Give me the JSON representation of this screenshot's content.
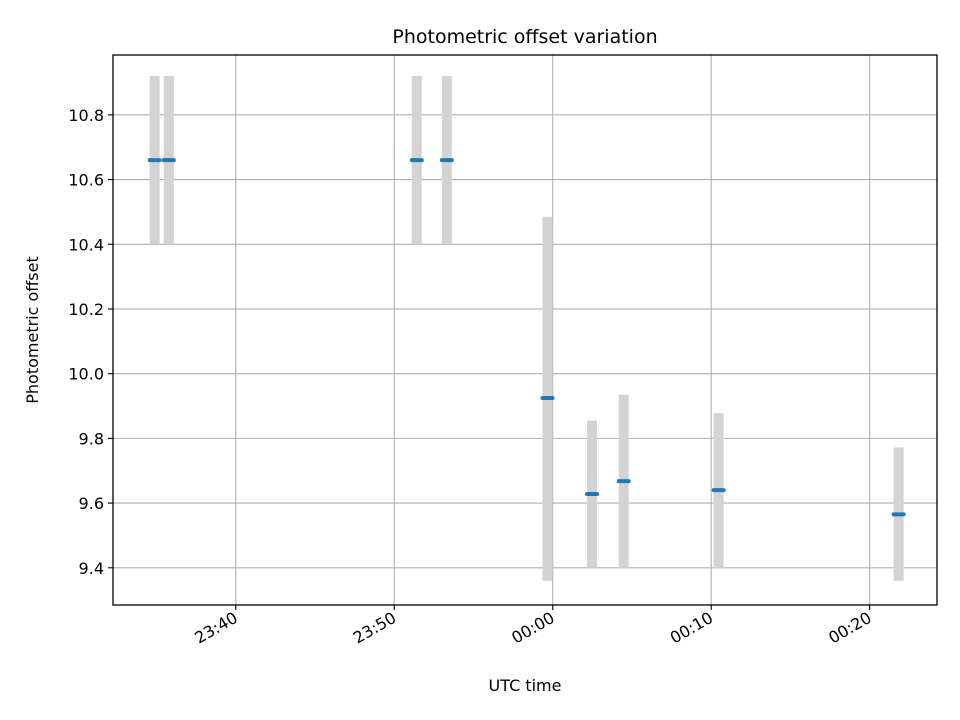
{
  "chart_data": {
    "type": "scatter",
    "title": "Photometric offset variation",
    "xlabel": "UTC time",
    "ylabel": "Photometric offset",
    "x_range_minutes": [
      -27.75,
      24.25
    ],
    "x_ticks": [
      {
        "minute": -20,
        "label": "23:40"
      },
      {
        "minute": -10,
        "label": "23:50"
      },
      {
        "minute": 0,
        "label": "00:00"
      },
      {
        "minute": 10,
        "label": "00:10"
      },
      {
        "minute": 20,
        "label": "00:20"
      }
    ],
    "ylim": [
      9.285,
      10.985
    ],
    "y_ticks": [
      9.4,
      9.6,
      9.8,
      10.0,
      10.2,
      10.4,
      10.6,
      10.8
    ],
    "grid": true,
    "colors": {
      "marker": "#1f77b4",
      "errorbar": "#d3d3d3",
      "grid": "#b0b0b0"
    },
    "points": [
      {
        "time": "23:34:53",
        "minute": -25.12,
        "y": 10.66,
        "ymin": 10.4,
        "ymax": 10.92
      },
      {
        "time": "23:35:46",
        "minute": -24.23,
        "y": 10.66,
        "ymin": 10.4,
        "ymax": 10.92
      },
      {
        "time": "23:51:25",
        "minute": -8.58,
        "y": 10.66,
        "ymin": 10.4,
        "ymax": 10.92
      },
      {
        "time": "23:53:19",
        "minute": -6.68,
        "y": 10.66,
        "ymin": 10.4,
        "ymax": 10.92
      },
      {
        "time": "23:59:40",
        "minute": -0.33,
        "y": 9.925,
        "ymin": 9.36,
        "ymax": 10.485
      },
      {
        "time": "00:02:29",
        "minute": 2.48,
        "y": 9.628,
        "ymin": 9.4,
        "ymax": 9.855
      },
      {
        "time": "00:04:29",
        "minute": 4.48,
        "y": 9.668,
        "ymin": 9.4,
        "ymax": 9.935
      },
      {
        "time": "00:10:28",
        "minute": 10.47,
        "y": 9.64,
        "ymin": 9.4,
        "ymax": 9.878
      },
      {
        "time": "00:21:50",
        "minute": 21.83,
        "y": 9.565,
        "ymin": 9.36,
        "ymax": 9.772
      }
    ]
  }
}
